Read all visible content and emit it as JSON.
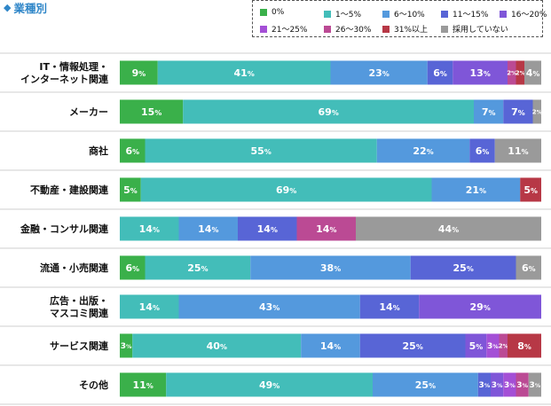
{
  "title": "業種別",
  "legend": [
    {
      "label": "0%",
      "color": "#3ab04a"
    },
    {
      "label": "1〜5%",
      "color": "#43bdb9"
    },
    {
      "label": "6〜10%",
      "color": "#5499dd"
    },
    {
      "label": "11〜15%",
      "color": "#5865d6"
    },
    {
      "label": "16〜20%",
      "color": "#7f56d8"
    },
    {
      "label": "21〜25%",
      "color": "#a44fd6"
    },
    {
      "label": "26〜30%",
      "color": "#bb4a94"
    },
    {
      "label": "31%以上",
      "color": "#b73846"
    },
    {
      "label": "採用していない",
      "color": "#9a9a9a"
    }
  ],
  "chart_data": {
    "type": "bar",
    "orientation": "horizontal",
    "stacked": true,
    "percent_suffix": "%",
    "xlim": [
      0,
      100
    ],
    "series_names": [
      "0%",
      "1〜5%",
      "6〜10%",
      "11〜15%",
      "16〜20%",
      "21〜25%",
      "26〜30%",
      "31%以上",
      "採用していない"
    ],
    "categories": [
      {
        "label": [
          "IT・情報処理・",
          "インターネット関連"
        ],
        "values": [
          9,
          41,
          23,
          6,
          13,
          0,
          2,
          2,
          4
        ]
      },
      {
        "label": [
          "メーカー"
        ],
        "values": [
          15,
          69,
          7,
          7,
          0,
          0,
          0,
          0,
          2
        ]
      },
      {
        "label": [
          "商社"
        ],
        "values": [
          6,
          55,
          22,
          6,
          0,
          0,
          0,
          0,
          11
        ]
      },
      {
        "label": [
          "不動産・建設関連"
        ],
        "values": [
          5,
          69,
          21,
          0,
          0,
          0,
          0,
          5,
          0
        ]
      },
      {
        "label": [
          "金融・コンサル関連"
        ],
        "values": [
          0,
          14,
          14,
          14,
          0,
          0,
          14,
          0,
          44
        ]
      },
      {
        "label": [
          "流通・小売関連"
        ],
        "values": [
          6,
          25,
          38,
          25,
          0,
          0,
          0,
          0,
          6
        ]
      },
      {
        "label": [
          "広告・出版・",
          "マスコミ関連"
        ],
        "values": [
          0,
          14,
          43,
          14,
          29,
          0,
          0,
          0,
          0
        ]
      },
      {
        "label": [
          "サービス関連"
        ],
        "values": [
          3,
          40,
          14,
          25,
          5,
          3,
          2,
          8,
          0
        ]
      },
      {
        "label": [
          "その他"
        ],
        "values": [
          11,
          49,
          25,
          3,
          3,
          3,
          3,
          0,
          3
        ]
      }
    ]
  }
}
